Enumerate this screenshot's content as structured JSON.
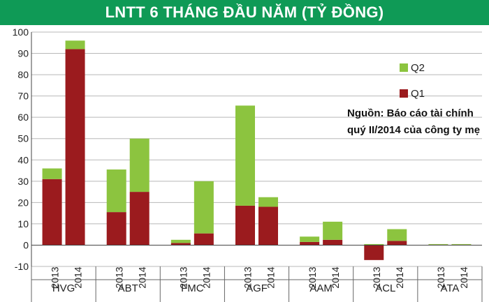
{
  "title": "LNTT 6 THÁNG ĐẦU NĂM (TỶ ĐỒNG)",
  "source_line1": "Nguồn: Báo cáo tài chính",
  "source_line2": "quý II/2014 của công ty mẹ",
  "colors": {
    "title_bg": "#0f9a56",
    "Q1": "#9b1b1e",
    "Q2": "#8cc43f",
    "grid": "#b8b8b8"
  },
  "chart_data": {
    "type": "bar",
    "stacked": true,
    "groups": [
      "HVG",
      "ABT",
      "FMC",
      "AGF",
      "AAM",
      "ACL",
      "ATA"
    ],
    "years": [
      "2013",
      "2014"
    ],
    "series": [
      {
        "name": "Q1",
        "values": [
          [
            31,
            92
          ],
          [
            15.5,
            25
          ],
          [
            1,
            5.5
          ],
          [
            18.5,
            18
          ],
          [
            1.5,
            2.5
          ],
          [
            -7,
            2
          ],
          [
            0.2,
            0.2
          ]
        ]
      },
      {
        "name": "Q2",
        "values": [
          [
            5,
            4
          ],
          [
            20,
            25
          ],
          [
            1.5,
            24.5
          ],
          [
            47,
            4.5
          ],
          [
            2.5,
            8.5
          ],
          [
            0.5,
            5.5
          ],
          [
            0.3,
            0.3
          ]
        ]
      }
    ],
    "yticks": [
      -10,
      0,
      10,
      20,
      30,
      40,
      50,
      60,
      70,
      80,
      90,
      100
    ],
    "ylim": [
      -10,
      100
    ],
    "grid": true,
    "legend": {
      "position": "right",
      "entries": [
        "Q2",
        "Q1"
      ]
    }
  }
}
